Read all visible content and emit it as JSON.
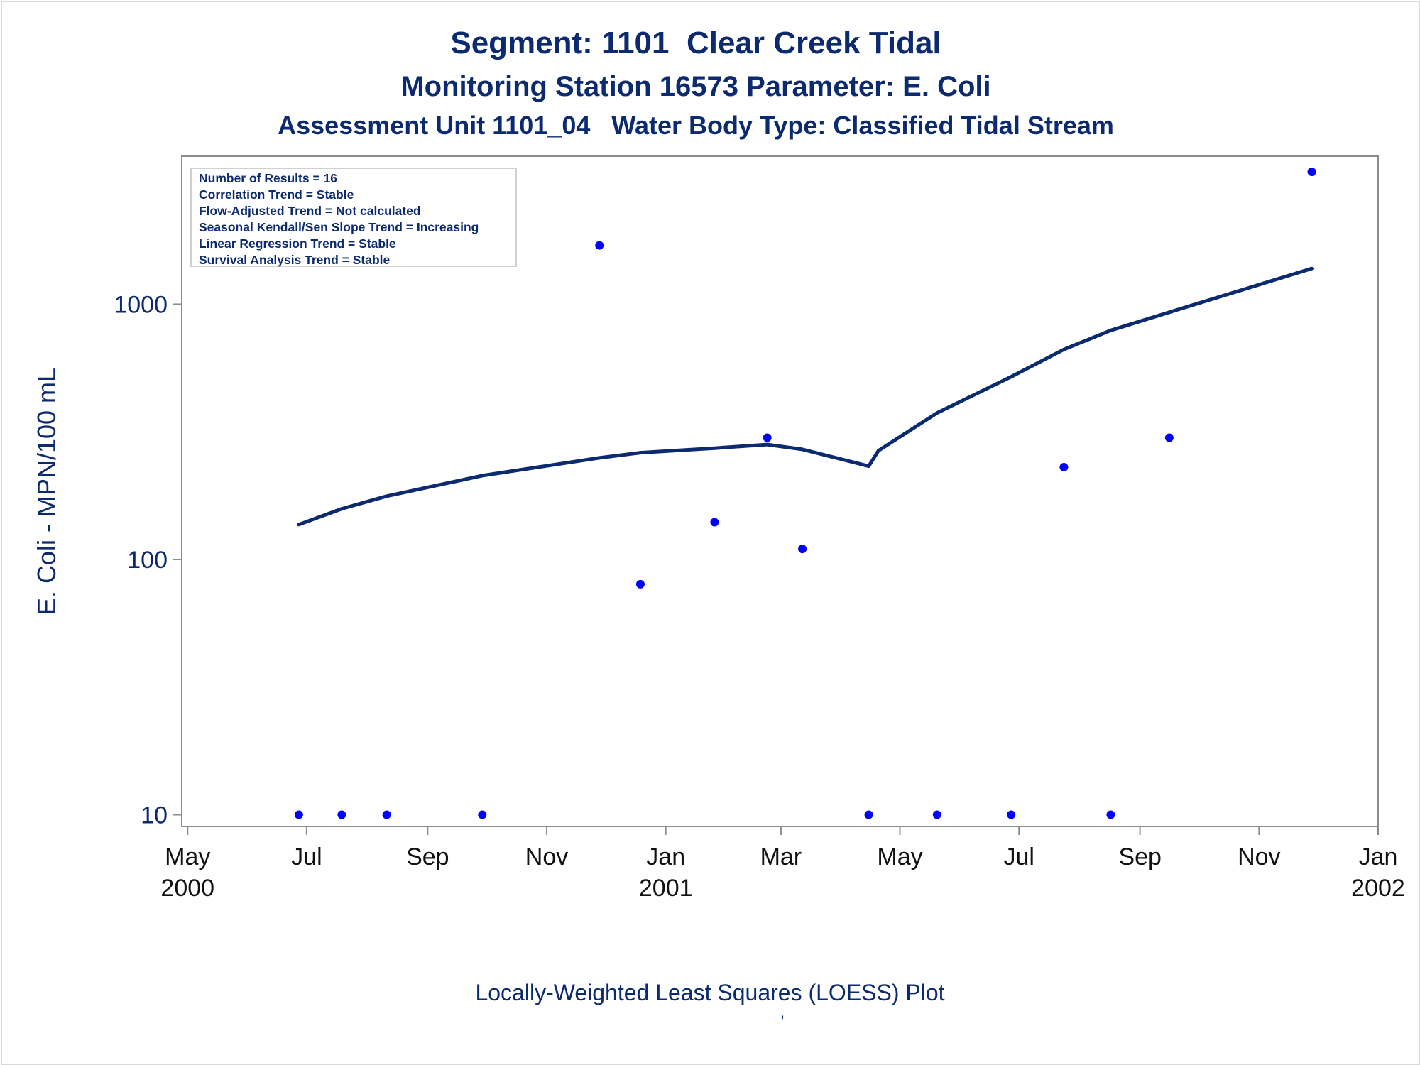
{
  "titles": {
    "line1": "Segment: 1101  Clear Creek Tidal",
    "line2": "Monitoring Station 16573 Parameter: E. Coli",
    "line3": "Assessment Unit 1101_04   Water Body Type: Classified Tidal Stream"
  },
  "stats": [
    "Number of Results = 16",
    "Correlation Trend = Stable",
    "Flow-Adjusted Trend = Not calculated",
    "Seasonal Kendall/Sen Slope Trend = Increasing",
    "Linear Regression Trend = Stable",
    "Survival Analysis Trend = Stable"
  ],
  "footer": "Locally-Weighted Least Squares (LOESS) Plot",
  "footer_mark": "'",
  "chart_data": {
    "type": "scatter",
    "ylabel": "E. Coli - MPN/100 mL",
    "xlabel": "",
    "y_scale": "log",
    "ylim": [
      9,
      3800
    ],
    "xlim": [
      "2000-04-28",
      "2002-01-01"
    ],
    "y_ticks": [
      {
        "value": 10,
        "label": "10"
      },
      {
        "value": 100,
        "label": "100"
      },
      {
        "value": 1000,
        "label": "1000"
      }
    ],
    "x_ticks": [
      {
        "date": "2000-05-01",
        "month": "May",
        "year": "2000"
      },
      {
        "date": "2000-07-01",
        "month": "Jul",
        "year": ""
      },
      {
        "date": "2000-09-01",
        "month": "Sep",
        "year": ""
      },
      {
        "date": "2000-11-01",
        "month": "Nov",
        "year": ""
      },
      {
        "date": "2001-01-01",
        "month": "Jan",
        "year": "2001"
      },
      {
        "date": "2001-03-01",
        "month": "Mar",
        "year": ""
      },
      {
        "date": "2001-05-01",
        "month": "May",
        "year": ""
      },
      {
        "date": "2001-07-01",
        "month": "Jul",
        "year": ""
      },
      {
        "date": "2001-09-01",
        "month": "Sep",
        "year": ""
      },
      {
        "date": "2001-11-01",
        "month": "Nov",
        "year": ""
      },
      {
        "date": "2002-01-01",
        "month": "Jan",
        "year": "2002"
      }
    ],
    "points": [
      {
        "x": "2000-06-27",
        "y": 10
      },
      {
        "x": "2000-07-19",
        "y": 10
      },
      {
        "x": "2000-08-11",
        "y": 10
      },
      {
        "x": "2000-09-29",
        "y": 10
      },
      {
        "x": "2000-11-28",
        "y": 1700
      },
      {
        "x": "2000-12-19",
        "y": 80
      },
      {
        "x": "2001-01-26",
        "y": 140
      },
      {
        "x": "2001-02-22",
        "y": 300
      },
      {
        "x": "2001-03-12",
        "y": 110
      },
      {
        "x": "2001-04-15",
        "y": 10
      },
      {
        "x": "2001-05-20",
        "y": 10
      },
      {
        "x": "2001-06-27",
        "y": 10
      },
      {
        "x": "2001-07-24",
        "y": 230
      },
      {
        "x": "2001-08-17",
        "y": 10
      },
      {
        "x": "2001-09-16",
        "y": 300
      },
      {
        "x": "2001-11-28",
        "y": 3300
      }
    ],
    "loess": [
      {
        "x": "2000-06-27",
        "y": 137
      },
      {
        "x": "2000-07-19",
        "y": 158
      },
      {
        "x": "2000-08-11",
        "y": 177
      },
      {
        "x": "2000-09-29",
        "y": 213
      },
      {
        "x": "2000-11-28",
        "y": 250
      },
      {
        "x": "2000-12-19",
        "y": 262
      },
      {
        "x": "2001-01-26",
        "y": 273
      },
      {
        "x": "2001-02-22",
        "y": 282
      },
      {
        "x": "2001-03-12",
        "y": 270
      },
      {
        "x": "2001-04-15",
        "y": 232
      },
      {
        "x": "2001-04-20",
        "y": 267
      },
      {
        "x": "2001-05-20",
        "y": 375
      },
      {
        "x": "2001-06-27",
        "y": 520
      },
      {
        "x": "2001-07-24",
        "y": 665
      },
      {
        "x": "2001-08-17",
        "y": 790
      },
      {
        "x": "2001-09-16",
        "y": 930
      },
      {
        "x": "2001-11-28",
        "y": 1380
      }
    ],
    "colors": {
      "points": "#0000ff",
      "line": "#0b2a6f",
      "text": "#0b2a6f",
      "axis": "#8c8c8c"
    }
  }
}
